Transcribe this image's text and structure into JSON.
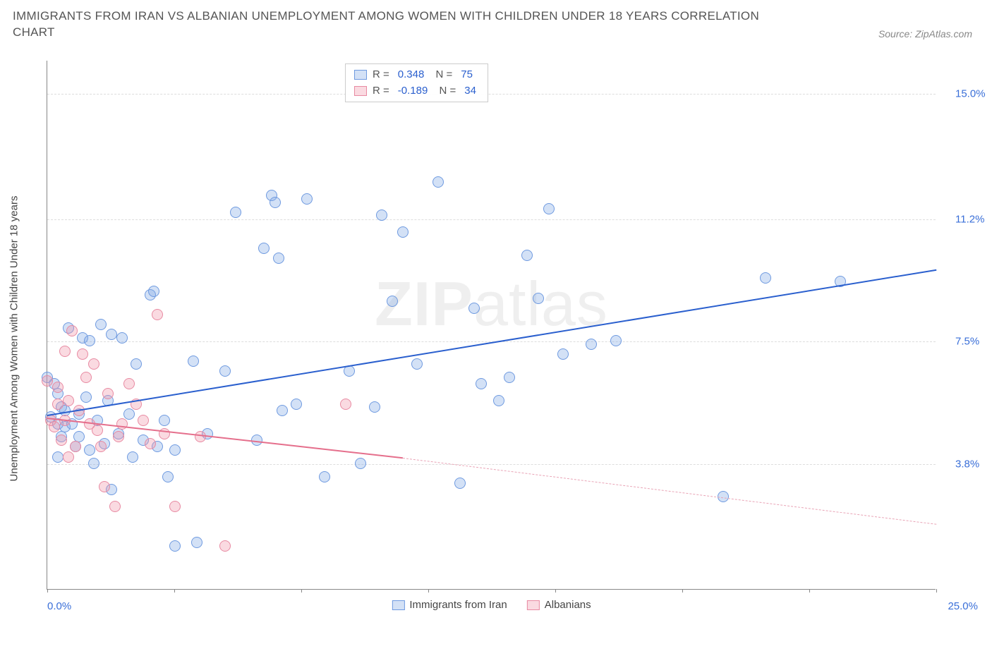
{
  "header": {
    "title_line1": "IMMIGRANTS FROM IRAN VS ALBANIAN UNEMPLOYMENT AMONG WOMEN WITH CHILDREN UNDER 18 YEARS CORRELATION",
    "title_line2": "CHART",
    "source": "Source: ZipAtlas.com"
  },
  "chart": {
    "type": "scatter",
    "ylabel": "Unemployment Among Women with Children Under 18 years",
    "xlim": [
      0,
      25
    ],
    "ylim": [
      0,
      16
    ],
    "y_ticks": [
      {
        "v": 3.8,
        "label": "3.8%"
      },
      {
        "v": 7.5,
        "label": "7.5%"
      },
      {
        "v": 11.2,
        "label": "11.2%"
      },
      {
        "v": 15.0,
        "label": "15.0%"
      }
    ],
    "x_tick_positions": [
      0,
      3.57,
      7.14,
      10.71,
      14.29,
      17.86,
      21.43,
      25
    ],
    "x_axis_left_label": "0.0%",
    "x_axis_right_label": "25.0%",
    "background_color": "#ffffff",
    "grid_color": "#dddddd",
    "axis_color": "#888888",
    "tick_label_color": "#3a6fd8",
    "marker_radius": 8,
    "marker_stroke_width": 1.2,
    "series": [
      {
        "id": "iran",
        "name": "Immigrants from Iran",
        "fill": "rgba(130,170,230,0.35)",
        "stroke": "#6f9ae0",
        "R": "0.348",
        "N": "75",
        "trend": {
          "color": "#2a5fce",
          "x1": 0,
          "y1": 5.3,
          "x2": 25,
          "y2": 9.7
        },
        "points": [
          [
            0.0,
            6.4
          ],
          [
            0.1,
            5.2
          ],
          [
            0.2,
            6.2
          ],
          [
            0.3,
            5.0
          ],
          [
            0.3,
            5.9
          ],
          [
            0.3,
            4.0
          ],
          [
            0.4,
            4.6
          ],
          [
            0.4,
            5.5
          ],
          [
            0.5,
            5.4
          ],
          [
            0.5,
            4.9
          ],
          [
            0.6,
            7.9
          ],
          [
            0.7,
            5.0
          ],
          [
            0.8,
            4.3
          ],
          [
            0.9,
            5.3
          ],
          [
            0.9,
            4.6
          ],
          [
            1.0,
            7.6
          ],
          [
            1.1,
            5.8
          ],
          [
            1.2,
            7.5
          ],
          [
            1.2,
            4.2
          ],
          [
            1.3,
            3.8
          ],
          [
            1.4,
            5.1
          ],
          [
            1.5,
            8.0
          ],
          [
            1.6,
            4.4
          ],
          [
            1.7,
            5.7
          ],
          [
            1.8,
            7.7
          ],
          [
            1.8,
            3.0
          ],
          [
            2.0,
            4.7
          ],
          [
            2.1,
            7.6
          ],
          [
            2.3,
            5.3
          ],
          [
            2.4,
            4.0
          ],
          [
            2.5,
            6.8
          ],
          [
            2.7,
            4.5
          ],
          [
            2.9,
            8.9
          ],
          [
            3.0,
            9.0
          ],
          [
            3.1,
            4.3
          ],
          [
            3.3,
            5.1
          ],
          [
            3.4,
            3.4
          ],
          [
            3.6,
            4.2
          ],
          [
            3.6,
            1.3
          ],
          [
            4.1,
            6.9
          ],
          [
            4.2,
            1.4
          ],
          [
            4.5,
            4.7
          ],
          [
            5.0,
            6.6
          ],
          [
            5.3,
            11.4
          ],
          [
            5.9,
            4.5
          ],
          [
            6.1,
            10.3
          ],
          [
            6.3,
            11.9
          ],
          [
            6.4,
            11.7
          ],
          [
            6.5,
            10.0
          ],
          [
            6.6,
            5.4
          ],
          [
            7.0,
            5.6
          ],
          [
            7.3,
            11.8
          ],
          [
            7.8,
            3.4
          ],
          [
            8.5,
            6.6
          ],
          [
            8.8,
            3.8
          ],
          [
            9.2,
            5.5
          ],
          [
            9.4,
            11.3
          ],
          [
            9.7,
            8.7
          ],
          [
            10.0,
            10.8
          ],
          [
            10.4,
            6.8
          ],
          [
            11.0,
            12.3
          ],
          [
            11.6,
            3.2
          ],
          [
            12.0,
            8.5
          ],
          [
            12.2,
            6.2
          ],
          [
            12.7,
            5.7
          ],
          [
            13.0,
            6.4
          ],
          [
            13.5,
            10.1
          ],
          [
            13.8,
            8.8
          ],
          [
            14.1,
            11.5
          ],
          [
            14.5,
            7.1
          ],
          [
            15.3,
            7.4
          ],
          [
            16.0,
            7.5
          ],
          [
            19.0,
            2.8
          ],
          [
            20.2,
            9.4
          ],
          [
            22.3,
            9.3
          ]
        ]
      },
      {
        "id": "albanian",
        "name": "Albanians",
        "fill": "rgba(240,150,170,0.35)",
        "stroke": "#e88aa2",
        "R": "-0.189",
        "N": "34",
        "trend_solid": {
          "color": "#e56f8c",
          "x1": 0,
          "y1": 5.2,
          "x2": 10,
          "y2": 4.0
        },
        "trend_dash": {
          "color": "#e9a4b6",
          "x1": 10,
          "y1": 4.0,
          "x2": 25,
          "y2": 2.0
        },
        "points": [
          [
            0.0,
            6.3
          ],
          [
            0.1,
            5.1
          ],
          [
            0.2,
            4.9
          ],
          [
            0.3,
            5.6
          ],
          [
            0.3,
            6.1
          ],
          [
            0.4,
            4.5
          ],
          [
            0.5,
            7.2
          ],
          [
            0.5,
            5.1
          ],
          [
            0.6,
            5.7
          ],
          [
            0.6,
            4.0
          ],
          [
            0.7,
            7.8
          ],
          [
            0.8,
            4.3
          ],
          [
            0.9,
            5.4
          ],
          [
            1.0,
            7.1
          ],
          [
            1.1,
            6.4
          ],
          [
            1.2,
            5.0
          ],
          [
            1.3,
            6.8
          ],
          [
            1.4,
            4.8
          ],
          [
            1.5,
            4.3
          ],
          [
            1.6,
            3.1
          ],
          [
            1.7,
            5.9
          ],
          [
            1.9,
            2.5
          ],
          [
            2.0,
            4.6
          ],
          [
            2.1,
            5.0
          ],
          [
            2.3,
            6.2
          ],
          [
            2.5,
            5.6
          ],
          [
            2.7,
            5.1
          ],
          [
            2.9,
            4.4
          ],
          [
            3.1,
            8.3
          ],
          [
            3.3,
            4.7
          ],
          [
            3.6,
            2.5
          ],
          [
            4.3,
            4.6
          ],
          [
            5.0,
            1.3
          ],
          [
            8.4,
            5.6
          ]
        ]
      }
    ],
    "legend_bottom": [
      {
        "name": "Immigrants from Iran",
        "fill": "rgba(130,170,230,0.35)",
        "stroke": "#6f9ae0"
      },
      {
        "name": "Albanians",
        "fill": "rgba(240,150,170,0.35)",
        "stroke": "#e88aa2"
      }
    ],
    "watermark": {
      "pre": "ZIP",
      "post": "atlas"
    }
  }
}
